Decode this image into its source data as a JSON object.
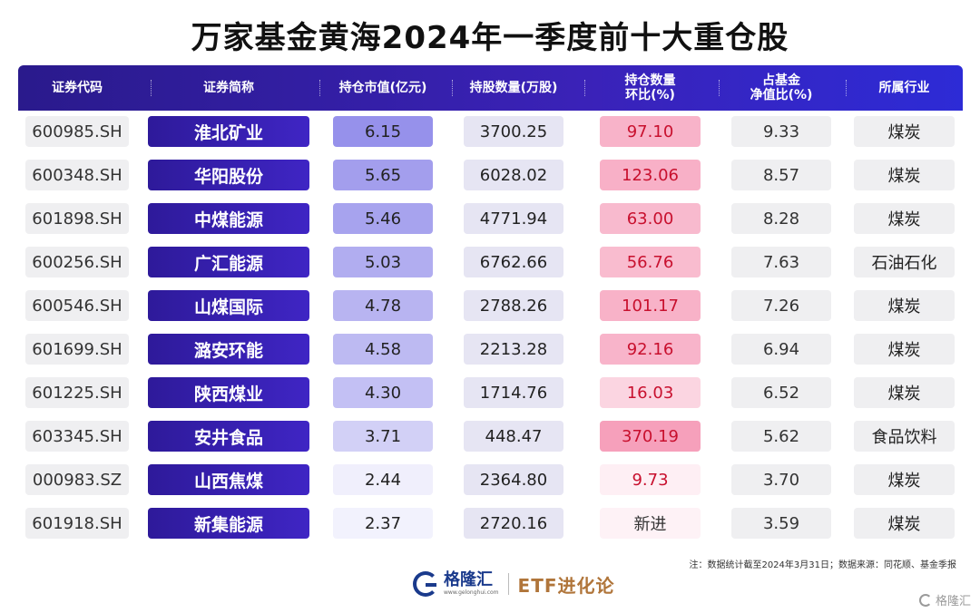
{
  "title": "万家基金黄海2024年一季度前十大重仓股",
  "columns": [
    {
      "label": "证券代码"
    },
    {
      "label": "证券简称"
    },
    {
      "label": "持仓市值(亿元)"
    },
    {
      "label": "持股数量(万股)"
    },
    {
      "label": "持仓数量\n环比(%)"
    },
    {
      "label": "占基金\n净值比(%)"
    },
    {
      "label": "所属行业"
    }
  ],
  "rows": [
    {
      "code": "600985.SH",
      "name": "淮北矿业",
      "market_value": "6.15",
      "shares": "3700.25",
      "qoq_change": "97.10",
      "nav_pct": "9.33",
      "industry": "煤炭"
    },
    {
      "code": "600348.SH",
      "name": "华阳股份",
      "market_value": "5.65",
      "shares": "6028.02",
      "qoq_change": "123.06",
      "nav_pct": "8.57",
      "industry": "煤炭"
    },
    {
      "code": "601898.SH",
      "name": "中煤能源",
      "market_value": "5.46",
      "shares": "4771.94",
      "qoq_change": "63.00",
      "nav_pct": "8.28",
      "industry": "煤炭"
    },
    {
      "code": "600256.SH",
      "name": "广汇能源",
      "market_value": "5.03",
      "shares": "6762.66",
      "qoq_change": "56.76",
      "nav_pct": "7.63",
      "industry": "石油石化"
    },
    {
      "code": "600546.SH",
      "name": "山煤国际",
      "market_value": "4.78",
      "shares": "2788.26",
      "qoq_change": "101.17",
      "nav_pct": "7.26",
      "industry": "煤炭"
    },
    {
      "code": "601699.SH",
      "name": "潞安环能",
      "market_value": "4.58",
      "shares": "2213.28",
      "qoq_change": "92.16",
      "nav_pct": "6.94",
      "industry": "煤炭"
    },
    {
      "code": "601225.SH",
      "name": "陕西煤业",
      "market_value": "4.30",
      "shares": "1714.76",
      "qoq_change": "16.03",
      "nav_pct": "6.52",
      "industry": "煤炭"
    },
    {
      "code": "603345.SH",
      "name": "安井食品",
      "market_value": "3.71",
      "shares": "448.47",
      "qoq_change": "370.19",
      "nav_pct": "5.62",
      "industry": "食品饮料"
    },
    {
      "code": "000983.SZ",
      "name": "山西焦煤",
      "market_value": "2.44",
      "shares": "2364.80",
      "qoq_change": "9.73",
      "nav_pct": "3.70",
      "industry": "煤炭"
    },
    {
      "code": "601918.SH",
      "name": "新集能源",
      "market_value": "2.37",
      "shares": "2720.16",
      "qoq_change": "新进",
      "nav_pct": "3.59",
      "industry": "煤炭"
    }
  ],
  "footnote": "注：数据统计截至2024年3月31日；数据来源：同花顺、基金季报",
  "brand": {
    "logo_name": "格隆汇",
    "logo_url": "www.gelonghui.com",
    "product": "ETF进化论",
    "watermark": "格隆汇"
  },
  "colors": {
    "header": "#2a1a8c",
    "name_cell": "#3a22b8",
    "market_value_scale": "#b9b6f0",
    "qoq_scale": "#f7a8c0",
    "qoq_text": "#c8102e"
  }
}
